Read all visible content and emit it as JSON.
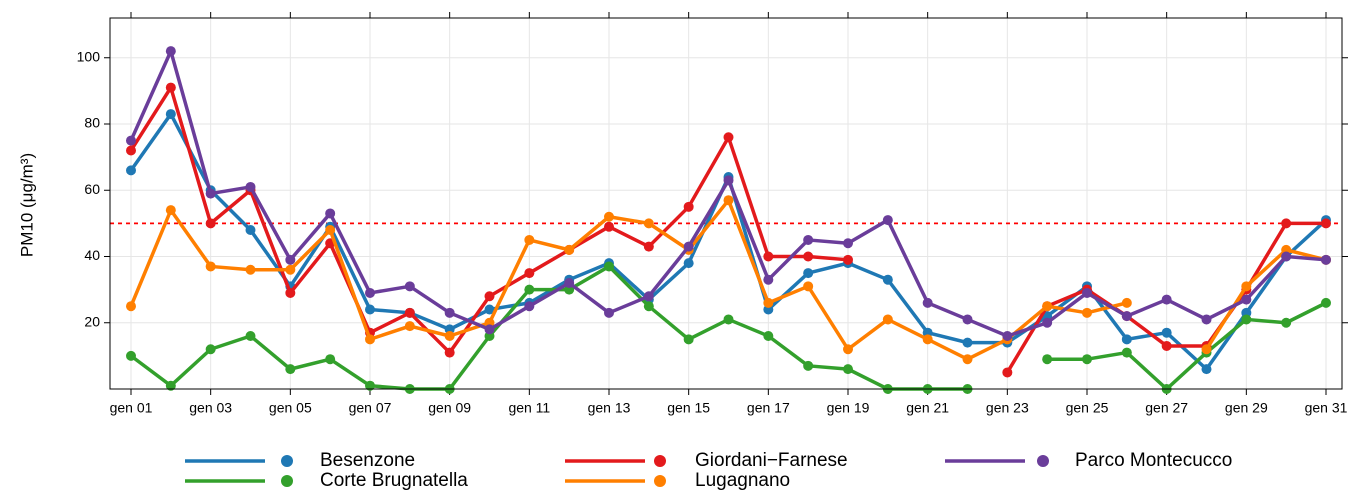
{
  "chart_data": {
    "type": "line",
    "ylabel": "PM10 (μg/m³)",
    "categories": [
      "gen 01",
      null,
      "gen 03",
      null,
      "gen 05",
      null,
      "gen 07",
      null,
      "gen 09",
      null,
      "gen 11",
      null,
      "gen 13",
      null,
      "gen 15",
      null,
      "gen 17",
      null,
      "gen 19",
      null,
      "gen 21",
      null,
      "gen 23",
      null,
      "gen 25",
      null,
      "gen 27",
      null,
      "gen 29",
      null,
      "gen 31"
    ],
    "series": [
      {
        "name": "Besenzone",
        "color": "#1f78b4",
        "values": [
          66,
          83,
          60,
          48,
          31,
          49,
          24,
          23,
          18,
          24,
          26,
          33,
          38,
          27,
          38,
          64,
          24,
          35,
          38,
          33,
          17,
          14,
          14,
          22,
          31,
          15,
          17,
          6,
          23,
          40,
          51
        ]
      },
      {
        "name": "Corte Brugnatella",
        "color": "#33a02c",
        "values": [
          10,
          1,
          12,
          16,
          6,
          9,
          1,
          0,
          0,
          16,
          30,
          30,
          37,
          25,
          15,
          21,
          16,
          7,
          6,
          0,
          0,
          0,
          null,
          9,
          9,
          11,
          0,
          11,
          21,
          20,
          26
        ]
      },
      {
        "name": "Giordani−Farnese",
        "color": "#e31a1c",
        "values": [
          72,
          91,
          50,
          60,
          29,
          44,
          17,
          23,
          11,
          28,
          35,
          42,
          49,
          43,
          55,
          76,
          40,
          40,
          39,
          null,
          null,
          null,
          5,
          25,
          30,
          22,
          13,
          13,
          30,
          50,
          50
        ]
      },
      {
        "name": "Lugagnano",
        "color": "#ff7f00",
        "values": [
          25,
          54,
          37,
          36,
          36,
          48,
          15,
          19,
          16,
          20,
          45,
          42,
          52,
          50,
          42,
          57,
          26,
          31,
          12,
          21,
          15,
          9,
          15,
          25,
          23,
          26,
          null,
          12,
          31,
          42,
          39
        ]
      },
      {
        "name": "Parco Montecucco",
        "color": "#6a3d9a",
        "values": [
          75,
          102,
          59,
          61,
          39,
          53,
          29,
          31,
          23,
          18,
          25,
          32,
          23,
          28,
          43,
          63,
          33,
          45,
          44,
          51,
          26,
          21,
          16,
          20,
          29,
          22,
          27,
          21,
          27,
          40,
          39
        ]
      }
    ],
    "hline": {
      "value": 50,
      "color": "#ff0000"
    },
    "ylim": [
      0,
      112
    ],
    "yticks": [
      20,
      40,
      60,
      80,
      100
    ],
    "grid": true
  }
}
